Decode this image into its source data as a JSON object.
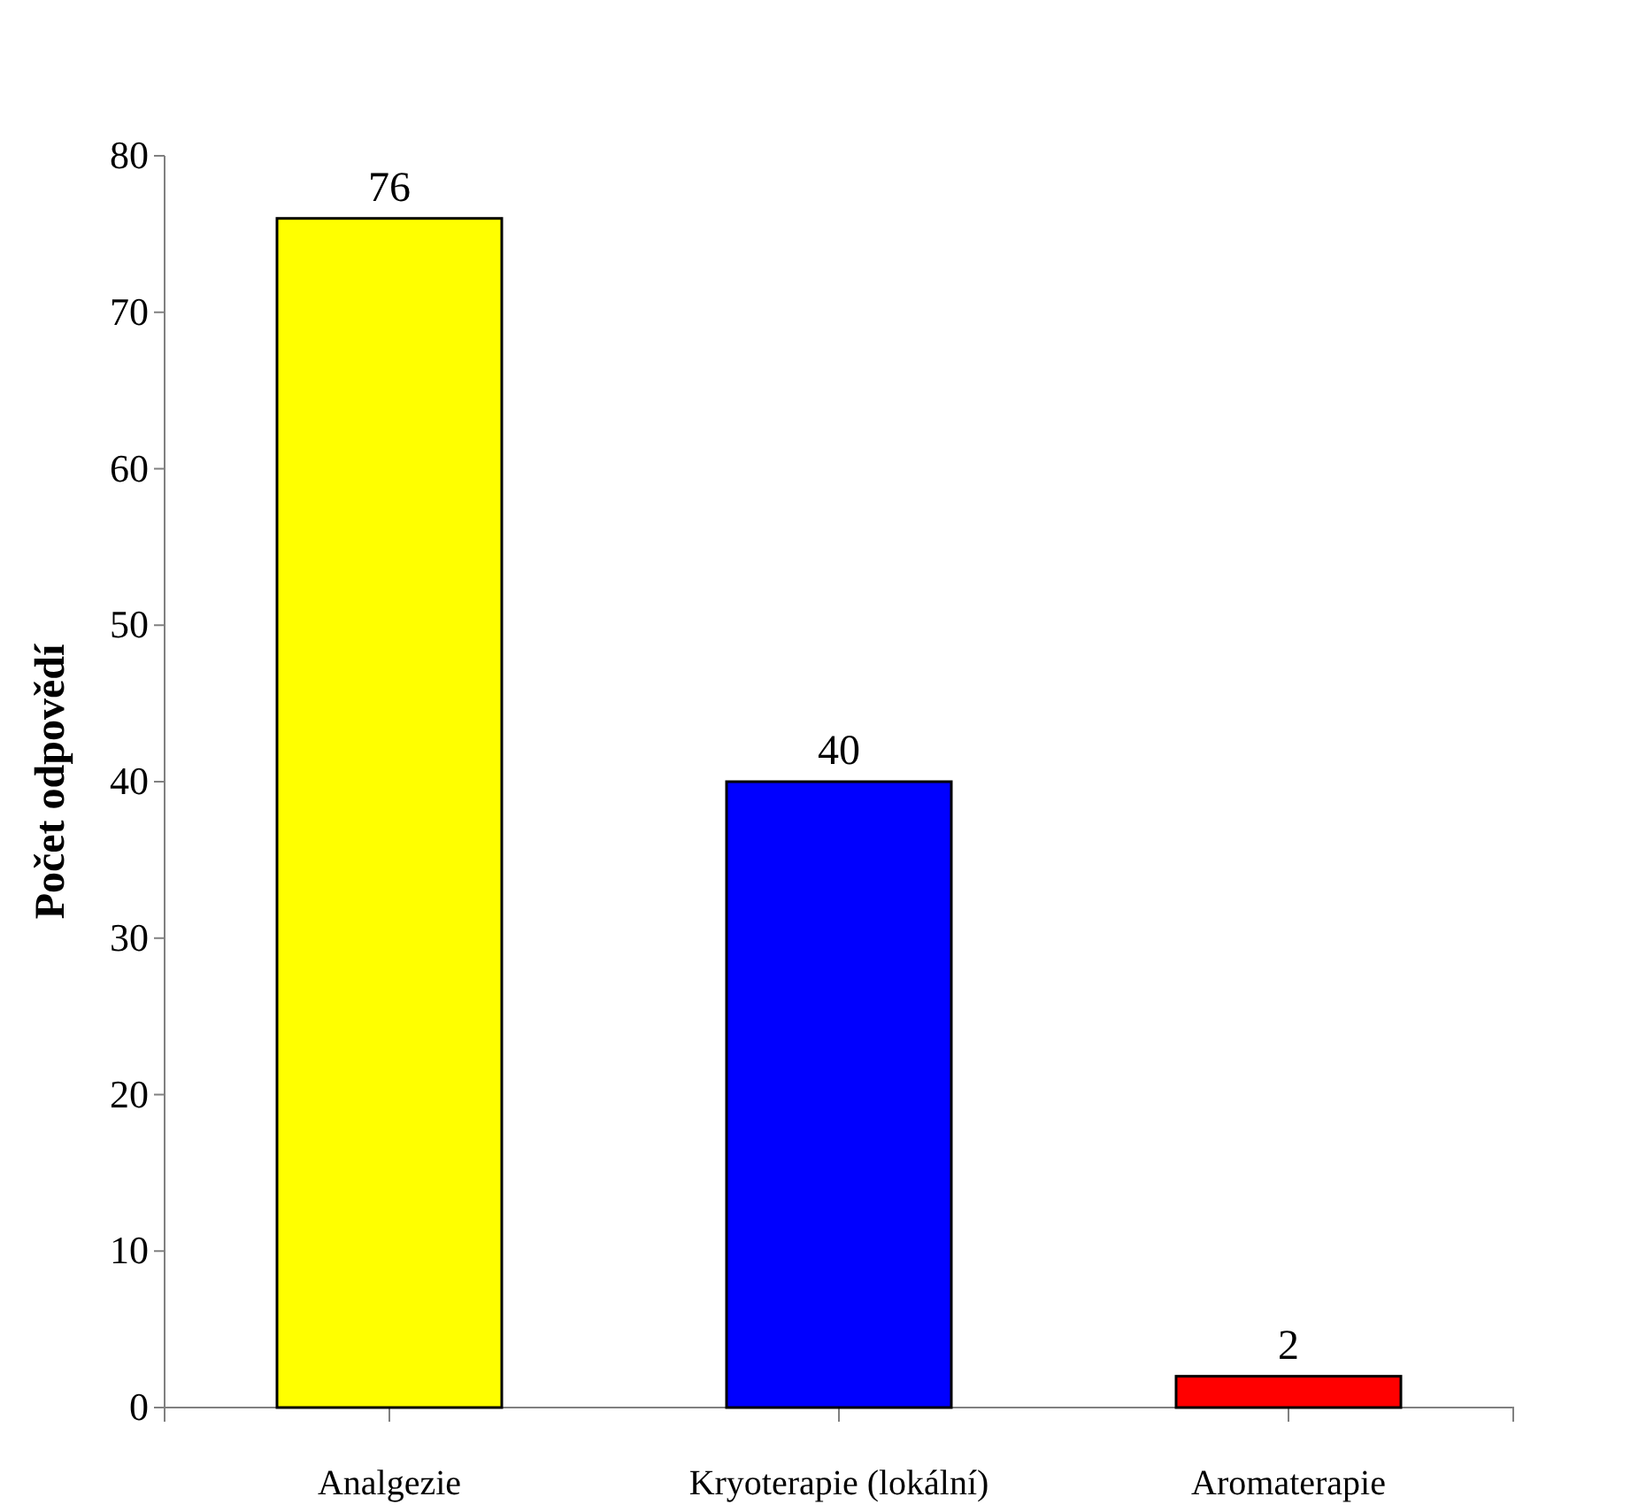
{
  "chart_data": {
    "type": "bar",
    "ylabel": "Počet odpovědí",
    "categories": [
      "Analgezie",
      "Kryoterapie (lokální)",
      "Aromaterapie"
    ],
    "values": [
      76,
      40,
      2
    ],
    "colors": [
      "#ffff00",
      "#0000ff",
      "#ff0000"
    ],
    "ylim": [
      0,
      80
    ],
    "yticks": [
      0,
      10,
      20,
      30,
      40,
      50,
      60,
      70,
      80
    ],
    "data_labels": true,
    "grid": false
  }
}
